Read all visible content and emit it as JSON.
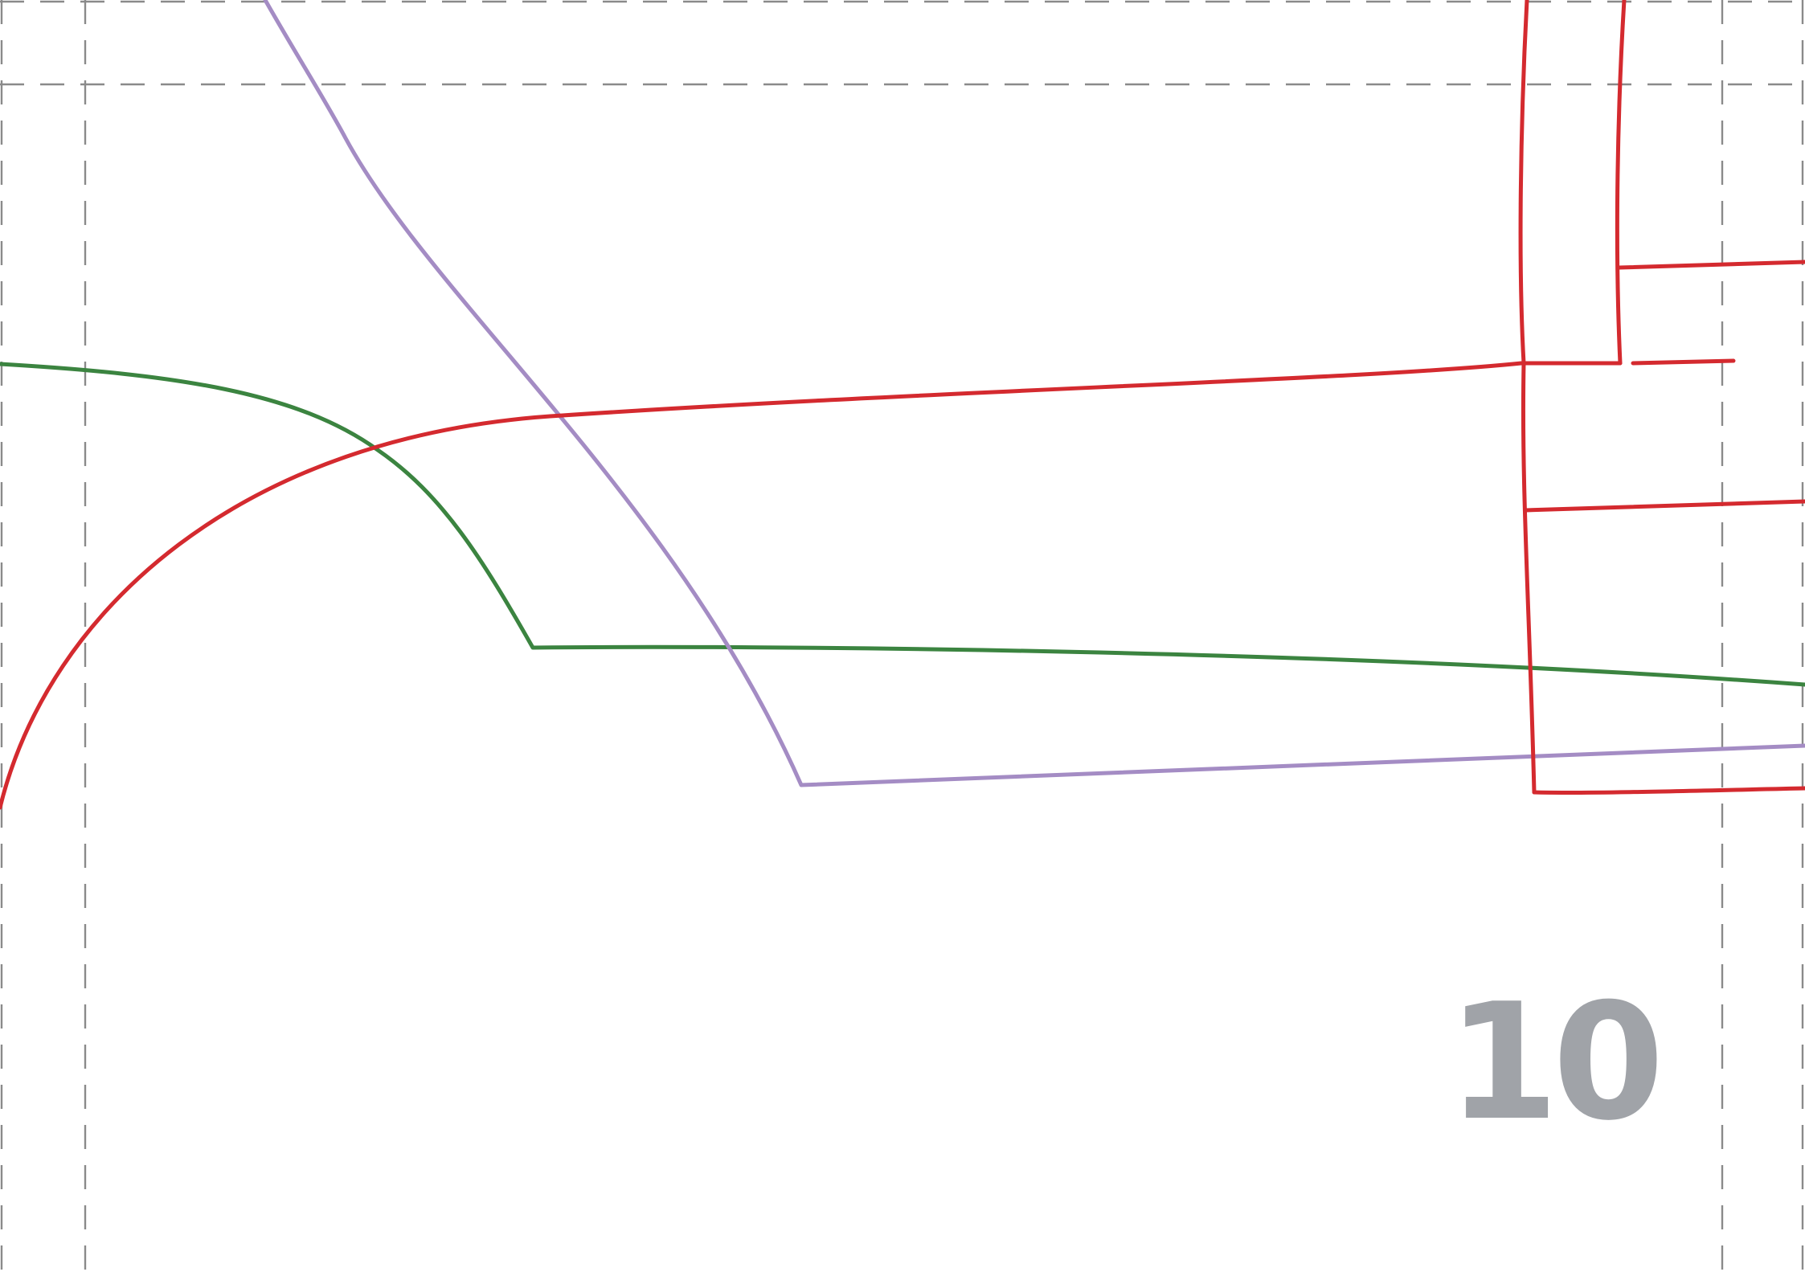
{
  "page": {
    "number": "10",
    "number_color": "#a0a3a8"
  },
  "colors": {
    "background": "#ffffff",
    "guide": "#8a8a8a",
    "red": "#d42a2f",
    "green": "#3b8440",
    "purple": "#a48cc4"
  },
  "lines": [
    {
      "name": "red-pattern-line",
      "color_key": "red"
    },
    {
      "name": "green-pattern-line",
      "color_key": "green"
    },
    {
      "name": "purple-pattern-line",
      "color_key": "purple"
    }
  ]
}
